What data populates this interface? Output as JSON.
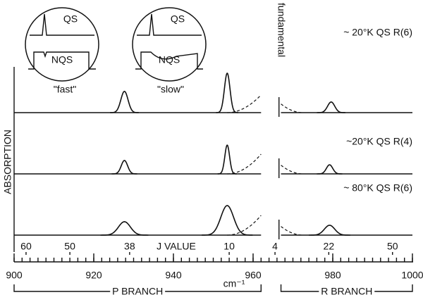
{
  "chart_data": {
    "type": "line",
    "xlabel": "cm⁻¹",
    "ylabel": "ABSORPTION",
    "xlim": [
      900,
      1000
    ],
    "xticks": [
      900,
      920,
      940,
      960,
      980,
      1000
    ],
    "minor_tick_spacing": 2,
    "j_label": "J VALUE",
    "j_ticks": [
      {
        "value": 903,
        "label": "60"
      },
      {
        "value": 914,
        "label": "50"
      },
      {
        "value": 929,
        "label": "38"
      },
      {
        "value": 954,
        "label": "10"
      },
      {
        "value": 965.5,
        "label": "4"
      },
      {
        "value": 979,
        "label": "22"
      },
      {
        "value": 995,
        "label": "50"
      }
    ],
    "fundamental": {
      "label": "fundamental",
      "value": 966.5
    },
    "branches": [
      {
        "label": "P BRANCH",
        "range": [
          900,
          962
        ]
      },
      {
        "label": "R BRANCH",
        "range": [
          967,
          1000
        ]
      }
    ],
    "panels": [
      {
        "label": "~ 20°K QS R(6)",
        "peaks": [
          {
            "center": 927.7,
            "height": 0.54,
            "width": 0.9
          },
          {
            "center": 953.5,
            "height": 1.0,
            "width": 0.7
          },
          {
            "center": 979.6,
            "height": 0.27,
            "width": 0.9
          }
        ],
        "wing": {
          "left_end": 0.45,
          "right_start": 0.22
        }
      },
      {
        "label": "~20°K QS R(4)",
        "peaks": [
          {
            "center": 927.7,
            "height": 0.34,
            "width": 0.8
          },
          {
            "center": 953.5,
            "height": 0.73,
            "width": 0.6
          },
          {
            "center": 979.2,
            "height": 0.23,
            "width": 0.8
          }
        ],
        "wing": {
          "left_end": 0.5,
          "right_start": 0.22
        }
      },
      {
        "label": "~ 80°K QS R(6)",
        "peaks": [
          {
            "center": 927.7,
            "height": 0.34,
            "width": 1.5
          },
          {
            "center": 953.5,
            "height": 0.75,
            "width": 1.6
          },
          {
            "center": 979.2,
            "height": 0.25,
            "width": 1.3
          }
        ],
        "wing": {
          "left_end": 0.5,
          "right_start": 0.22
        }
      }
    ],
    "insets": [
      {
        "top": "QS",
        "bottom": "NQS",
        "caption": "\"fast\""
      },
      {
        "top": "QS",
        "bottom": "NQS",
        "caption": "\"slow\""
      }
    ]
  }
}
